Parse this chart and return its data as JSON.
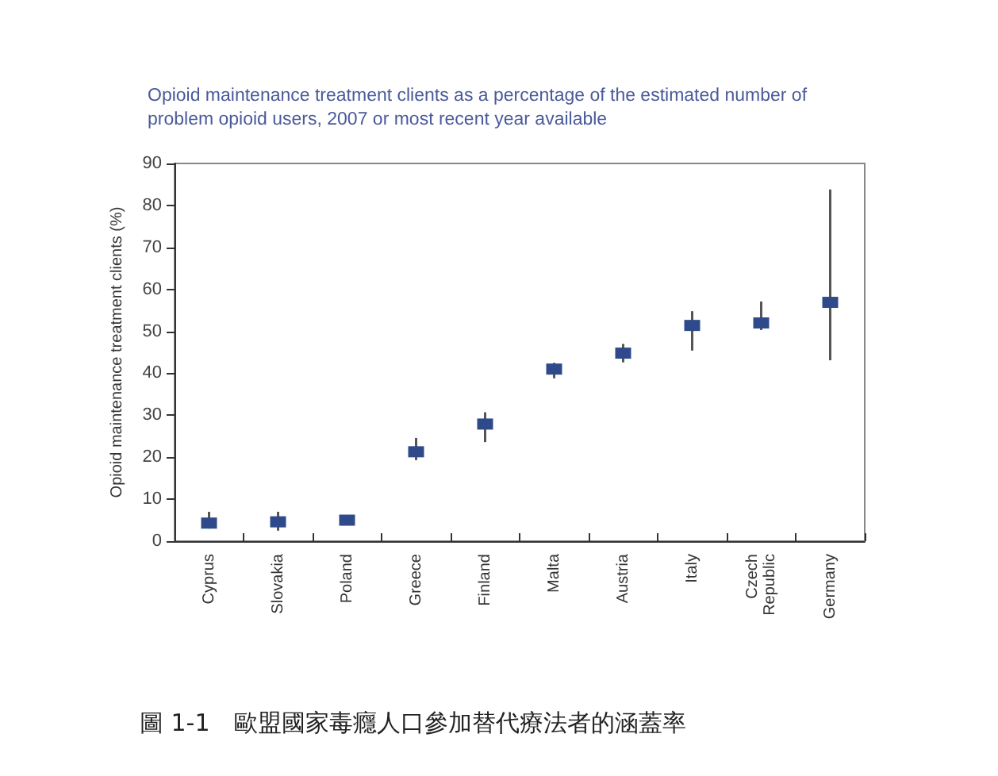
{
  "chart_data": {
    "type": "scatter",
    "title": "Opioid maintenance treatment clients as a percentage of the estimated number of\nproblem opioid users, 2007 or most recent year available",
    "ylabel": "Opioid maintenance treatment clients (%)",
    "categories": [
      "Cyprus",
      "Slovakia",
      "Poland",
      "Greece",
      "Finland",
      "Malta",
      "Austria",
      "Italy",
      "Czech\nRepublic",
      "Germany"
    ],
    "values": [
      4.3,
      4.6,
      5.0,
      21.3,
      27.9,
      41.0,
      44.8,
      51.4,
      52.0,
      56.9
    ],
    "errors": [
      [
        3,
        7
      ],
      [
        2.5,
        7
      ],
      null,
      [
        19.3,
        24.6
      ],
      [
        23.6,
        30.7
      ],
      [
        38.8,
        42.5
      ],
      [
        42.6,
        47
      ],
      [
        45.4,
        54.8
      ],
      [
        50.3,
        57.1
      ],
      [
        43.1,
        83.8
      ]
    ],
    "color": "#2e4a8a",
    "ylim": [
      0,
      90
    ],
    "yticks": [
      0,
      10,
      20,
      30,
      40,
      50,
      60,
      70,
      80,
      90
    ],
    "grid": false,
    "marker": "square",
    "annotations": [
      "圖 1-1　歐盟國家毒癮人口參加替代療法者的涵蓋率"
    ]
  }
}
